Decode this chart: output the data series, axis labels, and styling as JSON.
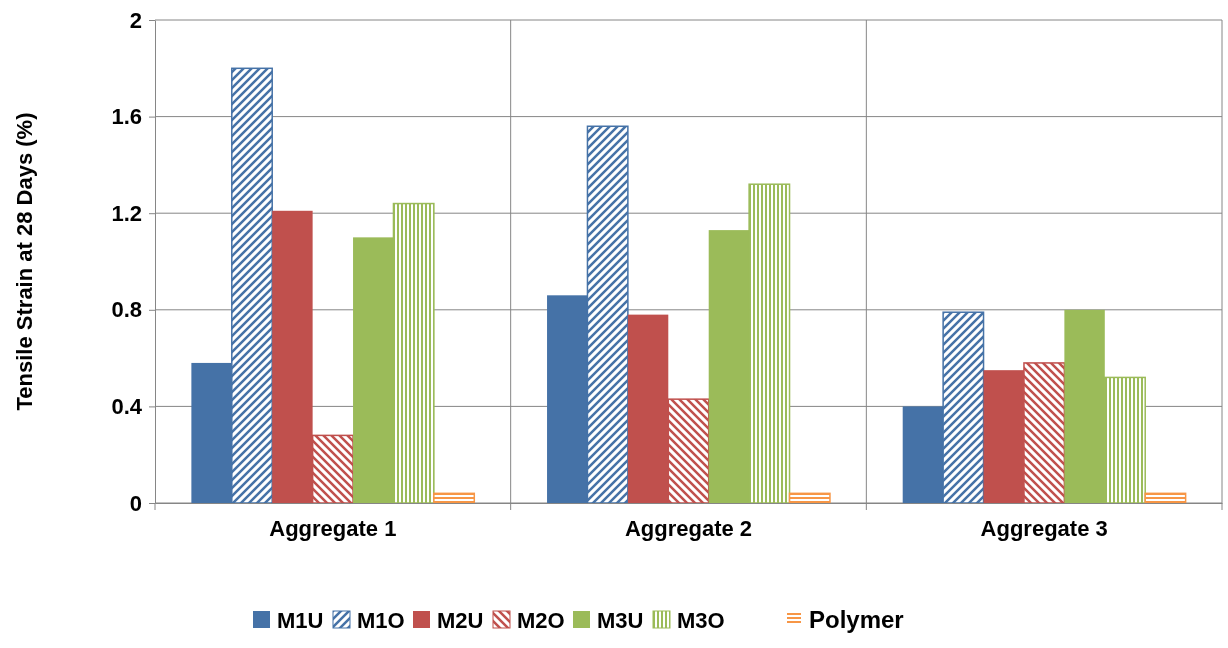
{
  "chart_data": {
    "type": "bar",
    "ylabel": "Tensile Strain at 28 Days (%)",
    "categories": [
      "Aggregate 1",
      "Aggregate 2",
      "Aggregate 3"
    ],
    "series": [
      {
        "name": "M1U",
        "color": "#4572a7",
        "values": [
          0.58,
          0.86,
          0.4
        ]
      },
      {
        "name": "M1O",
        "color": "#4572a7",
        "values": [
          1.8,
          1.56,
          0.79
        ]
      },
      {
        "name": "M2U",
        "color": "#c0504d",
        "values": [
          1.21,
          0.78,
          0.55
        ]
      },
      {
        "name": "M2O",
        "color": "#c0504d",
        "values": [
          0.28,
          0.43,
          0.58
        ]
      },
      {
        "name": "M3U",
        "color": "#9bbb59",
        "values": [
          1.1,
          1.13,
          0.8
        ]
      },
      {
        "name": "M3O",
        "color": "#9bbb59",
        "values": [
          1.24,
          1.32,
          0.52
        ]
      },
      {
        "name": "Polymer",
        "color": "#f79646",
        "values": [
          0.04,
          0.04,
          0.04
        ]
      }
    ],
    "ylim": [
      0,
      2
    ],
    "yticks": [
      0,
      0.4,
      0.8,
      1.2,
      1.6,
      2
    ],
    "grid": true,
    "legend": "bottom"
  }
}
